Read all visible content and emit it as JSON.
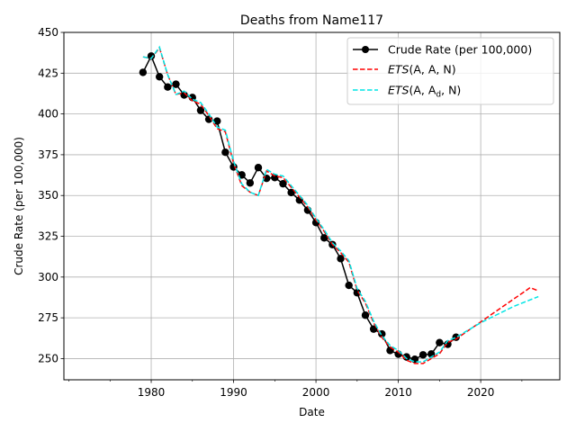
{
  "chart_data": {
    "type": "line",
    "title": "Deaths from Name117",
    "xlabel": "Date",
    "ylabel": "Crude Rate (per 100,000)",
    "xlim": [
      1969.4,
      2029.6
    ],
    "ylim": [
      237,
      450
    ],
    "xticks": [
      1980,
      1990,
      2000,
      2010,
      2020
    ],
    "yticks": [
      250,
      275,
      300,
      325,
      350,
      375,
      400,
      425,
      450
    ],
    "grid": true,
    "legend_position": "top-right",
    "series": [
      {
        "name": "Crude Rate (per 100,000)",
        "color": "#000000",
        "style": "solid-marker",
        "x": [
          1979,
          1980,
          1981,
          1982,
          1983,
          1984,
          1985,
          1986,
          1987,
          1988,
          1989,
          1990,
          1991,
          1992,
          1993,
          1994,
          1995,
          1996,
          1997,
          1998,
          1999,
          2000,
          2001,
          2002,
          2003,
          2004,
          2005,
          2006,
          2007,
          2008,
          2009,
          2010,
          2011,
          2012,
          2013,
          2014,
          2015,
          2016,
          2017
        ],
        "values": [
          425.5,
          435.5,
          422.8,
          416.5,
          418.2,
          411.6,
          410.1,
          402.2,
          396.7,
          395.6,
          376.5,
          367.5,
          362.6,
          357.7,
          367.1,
          360.5,
          361.0,
          357.2,
          351.8,
          347.2,
          341.0,
          333.4,
          324.0,
          319.9,
          311.3,
          294.9,
          290.4,
          276.6,
          268.1,
          265.1,
          255.0,
          252.7,
          251.0,
          249.6,
          252.3,
          252.8,
          259.8,
          258.8,
          263.1
        ]
      },
      {
        "name": "ETS(A, A, N)",
        "label_main": "ETS",
        "label_args": "(A, A, N)",
        "color": "#ff0000",
        "style": "dashed",
        "x": [
          1979,
          1980,
          1981,
          1982,
          1983,
          1984,
          1985,
          1986,
          1987,
          1988,
          1989,
          1990,
          1991,
          1992,
          1993,
          1994,
          1995,
          1996,
          1997,
          1998,
          1999,
          2000,
          2001,
          2002,
          2003,
          2004,
          2005,
          2006,
          2007,
          2008,
          2009,
          2010,
          2011,
          2012,
          2013,
          2014,
          2015,
          2016,
          2017,
          2018,
          2019,
          2020,
          2021,
          2022,
          2023,
          2024,
          2025,
          2026,
          2027
        ],
        "values": [
          435,
          434,
          440.5,
          424,
          412,
          413,
          408,
          406,
          399,
          391,
          389,
          370,
          356,
          352,
          350,
          365,
          362,
          361,
          355,
          349,
          343,
          335,
          328,
          320,
          315,
          309,
          292,
          284,
          272,
          263,
          257,
          254,
          249,
          247,
          247,
          250,
          253,
          260,
          262,
          265.5,
          269,
          272.5,
          276,
          279.5,
          283,
          286.5,
          290,
          293.5,
          291.5
        ]
      },
      {
        "name": "ETS(A, Ad, N)",
        "label_main": "ETS",
        "label_args": "(A, A",
        "label_sub": "d",
        "label_end": ", N)",
        "color": "#00e5e5",
        "style": "dashed",
        "x": [
          1979,
          1980,
          1981,
          1982,
          1983,
          1984,
          1985,
          1986,
          1987,
          1988,
          1989,
          1990,
          1991,
          1992,
          1993,
          1994,
          1995,
          1996,
          1997,
          1998,
          1999,
          2000,
          2001,
          2002,
          2003,
          2004,
          2005,
          2006,
          2007,
          2008,
          2009,
          2010,
          2011,
          2012,
          2013,
          2014,
          2015,
          2016,
          2017,
          2018,
          2019,
          2020,
          2021,
          2022,
          2023,
          2024,
          2025,
          2026,
          2027
        ],
        "values": [
          435,
          434,
          441,
          424,
          412,
          414,
          409,
          407,
          400,
          392,
          390,
          371,
          357,
          352,
          350,
          366,
          363,
          362,
          356,
          350,
          344,
          336,
          329,
          321,
          316,
          310,
          293,
          285,
          273,
          264,
          258,
          255,
          250,
          248,
          248,
          251,
          254,
          261,
          263,
          266,
          269,
          272,
          274.5,
          277,
          279.5,
          282,
          284,
          286,
          288
        ]
      }
    ]
  }
}
